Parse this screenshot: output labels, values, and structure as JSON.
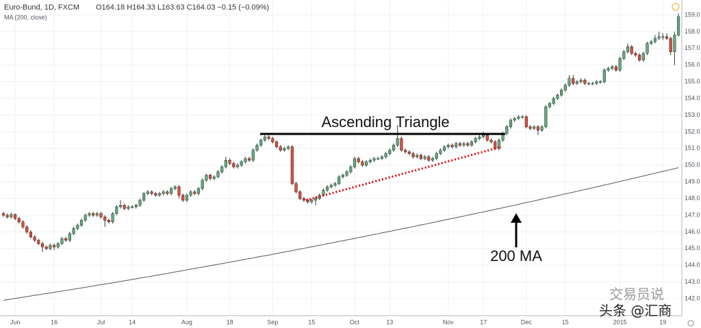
{
  "chart_data": {
    "type": "candlestick",
    "symbol": "Euro-Bund, 1D, FXCM",
    "quote": "O164.18 H164.33 L163.63 C164.03 −0.15 (−0.09%)",
    "indicator": "MA (200, close)",
    "annotations": [
      "Ascending Triangle",
      "200 MA"
    ],
    "watermark": [
      "交易员说",
      "头条 @汇商"
    ],
    "up_color": "#6ba583",
    "down_color": "#d75442",
    "grid": true,
    "ylim": [
      141.06,
      159.9
    ],
    "yticks": [
      {
        "value": 142,
        "label": "142.0"
      },
      {
        "value": 143,
        "label": "143.0"
      },
      {
        "value": 144,
        "label": "144.0"
      },
      {
        "value": 145,
        "label": "145.0"
      },
      {
        "value": 146,
        "label": "146.0"
      },
      {
        "value": 147,
        "label": "147.0"
      },
      {
        "value": 148,
        "label": "148.0"
      },
      {
        "value": 149,
        "label": "149.0"
      },
      {
        "value": 150,
        "label": "150.0"
      },
      {
        "value": 151,
        "label": "151.0"
      },
      {
        "value": 152,
        "label": "152.0"
      },
      {
        "value": 153,
        "label": "153.0"
      },
      {
        "value": 154,
        "label": "154.0"
      },
      {
        "value": 155,
        "label": "155.0"
      },
      {
        "value": 156,
        "label": "156.0"
      },
      {
        "value": 157,
        "label": "157.0"
      },
      {
        "value": 158,
        "label": "158.0"
      },
      {
        "value": 159,
        "label": "159.0"
      }
    ],
    "categories": [
      null,
      null,
      null,
      "Jun",
      null,
      null,
      null,
      null,
      null,
      null,
      null,
      null,
      null,
      "16",
      null,
      null,
      null,
      null,
      null,
      null,
      null,
      null,
      null,
      null,
      null,
      "Jul",
      null,
      null,
      null,
      null,
      null,
      null,
      null,
      "14",
      null,
      null,
      null,
      null,
      null,
      null,
      null,
      null,
      null,
      null,
      null,
      null,
      null,
      "Aug",
      null,
      null,
      null,
      null,
      null,
      null,
      null,
      null,
      null,
      null,
      "18",
      null,
      null,
      null,
      null,
      null,
      null,
      null,
      null,
      null,
      null,
      "Sep",
      null,
      null,
      null,
      null,
      null,
      null,
      null,
      null,
      null,
      "15",
      null,
      null,
      null,
      null,
      null,
      null,
      null,
      null,
      null,
      null,
      "Oct",
      null,
      null,
      null,
      null,
      null,
      null,
      null,
      null,
      "13",
      null,
      null,
      null,
      null,
      null,
      null,
      null,
      null,
      null,
      null,
      null,
      null,
      null,
      null,
      "Nov",
      null,
      null,
      null,
      null,
      null,
      null,
      null,
      null,
      "17",
      null,
      null,
      null,
      null,
      null,
      null,
      null,
      null,
      null,
      null,
      "Dec",
      null,
      null,
      null,
      null,
      null,
      null,
      null,
      null,
      null,
      "15",
      null,
      null,
      null,
      null,
      null,
      null,
      null,
      null,
      null,
      null,
      null,
      null,
      null,
      "2015",
      null,
      null,
      null,
      null,
      null,
      null,
      null,
      null,
      null,
      null,
      "19",
      null,
      null,
      null,
      null
    ],
    "ohlc": [
      [
        147.1,
        147.2,
        146.9,
        147.0
      ],
      [
        147.0,
        147.1,
        146.8,
        146.9
      ],
      [
        146.9,
        147.15,
        146.8,
        147.05
      ],
      [
        147.05,
        147.1,
        146.7,
        146.8
      ],
      [
        146.8,
        146.9,
        146.5,
        146.6
      ],
      [
        146.6,
        146.7,
        146.2,
        146.3
      ],
      [
        146.3,
        146.4,
        145.9,
        146.0
      ],
      [
        146.0,
        146.1,
        145.6,
        145.7
      ],
      [
        145.7,
        145.8,
        145.4,
        145.5
      ],
      [
        145.5,
        145.6,
        145.2,
        145.3
      ],
      [
        145.3,
        145.4,
        144.8,
        145.1
      ],
      [
        145.1,
        145.2,
        144.9,
        145.0
      ],
      [
        145.0,
        145.3,
        144.9,
        145.2
      ],
      [
        145.2,
        145.3,
        144.9,
        145.1
      ],
      [
        145.1,
        145.4,
        145.0,
        145.3
      ],
      [
        145.3,
        145.7,
        145.2,
        145.6
      ],
      [
        145.6,
        145.7,
        145.4,
        145.5
      ],
      [
        145.5,
        146.0,
        145.4,
        145.9
      ],
      [
        145.9,
        146.3,
        145.8,
        146.2
      ],
      [
        146.2,
        146.5,
        146.1,
        146.4
      ],
      [
        146.4,
        146.8,
        146.3,
        146.7
      ],
      [
        146.7,
        147.1,
        146.6,
        147.0
      ],
      [
        147.0,
        147.2,
        146.9,
        147.1
      ],
      [
        147.1,
        147.2,
        146.9,
        147.0
      ],
      [
        147.0,
        147.2,
        146.9,
        147.1
      ],
      [
        147.1,
        147.2,
        146.8,
        146.9
      ],
      [
        146.9,
        147.0,
        146.3,
        146.7
      ],
      [
        146.7,
        146.8,
        146.5,
        146.6
      ],
      [
        146.6,
        147.2,
        146.5,
        147.1
      ],
      [
        147.1,
        147.6,
        147.0,
        147.5
      ],
      [
        147.5,
        147.9,
        147.4,
        147.6
      ],
      [
        147.6,
        147.7,
        147.3,
        147.4
      ],
      [
        147.4,
        147.6,
        147.3,
        147.5
      ],
      [
        147.5,
        147.6,
        147.4,
        147.5
      ],
      [
        147.5,
        147.7,
        147.4,
        147.6
      ],
      [
        147.6,
        148.0,
        147.5,
        147.9
      ],
      [
        147.9,
        148.4,
        147.8,
        148.3
      ],
      [
        148.3,
        148.5,
        148.2,
        148.4
      ],
      [
        148.4,
        148.5,
        148.2,
        148.3
      ],
      [
        148.3,
        148.4,
        148.1,
        148.2
      ],
      [
        148.2,
        148.4,
        148.1,
        148.3
      ],
      [
        148.3,
        148.5,
        148.2,
        148.4
      ],
      [
        148.4,
        148.5,
        148.2,
        148.3
      ],
      [
        148.3,
        148.7,
        148.2,
        148.6
      ],
      [
        148.6,
        148.8,
        148.5,
        148.7
      ],
      [
        148.7,
        148.8,
        148.0,
        148.2
      ],
      [
        148.2,
        148.3,
        147.8,
        147.9
      ],
      [
        147.9,
        148.3,
        147.8,
        148.2
      ],
      [
        148.2,
        148.5,
        148.1,
        148.4
      ],
      [
        148.4,
        148.5,
        148.2,
        148.3
      ],
      [
        148.3,
        148.7,
        148.2,
        148.6
      ],
      [
        148.6,
        149.2,
        148.5,
        149.1
      ],
      [
        149.1,
        149.5,
        149.0,
        149.4
      ],
      [
        149.4,
        149.5,
        149.1,
        149.2
      ],
      [
        149.2,
        149.4,
        149.1,
        149.3
      ],
      [
        149.3,
        149.7,
        149.2,
        149.6
      ],
      [
        149.6,
        150.0,
        149.5,
        149.9
      ],
      [
        149.9,
        150.5,
        149.8,
        150.3
      ],
      [
        150.3,
        150.4,
        150.0,
        150.1
      ],
      [
        150.1,
        150.2,
        149.8,
        149.9
      ],
      [
        149.9,
        150.1,
        149.8,
        150.0
      ],
      [
        150.0,
        150.3,
        149.9,
        150.2
      ],
      [
        150.2,
        150.5,
        150.1,
        150.4
      ],
      [
        150.4,
        150.5,
        150.2,
        150.3
      ],
      [
        150.3,
        151.0,
        150.2,
        150.9
      ],
      [
        150.9,
        151.3,
        150.8,
        151.2
      ],
      [
        151.2,
        151.6,
        151.1,
        151.5
      ],
      [
        151.5,
        151.9,
        151.4,
        151.7
      ],
      [
        151.7,
        151.8,
        151.5,
        151.6
      ],
      [
        151.6,
        151.7,
        151.3,
        151.4
      ],
      [
        151.4,
        151.5,
        151.0,
        151.1
      ],
      [
        151.1,
        151.2,
        150.8,
        150.9
      ],
      [
        150.9,
        151.1,
        150.8,
        151.0
      ],
      [
        151.0,
        151.2,
        150.9,
        151.1
      ],
      [
        151.1,
        151.2,
        148.8,
        148.9
      ],
      [
        148.9,
        149.0,
        148.3,
        148.4
      ],
      [
        148.4,
        148.5,
        147.9,
        148.0
      ],
      [
        148.0,
        148.1,
        147.8,
        147.9
      ],
      [
        147.9,
        148.0,
        147.7,
        147.8
      ],
      [
        147.8,
        148.0,
        147.7,
        147.9
      ],
      [
        147.9,
        148.1,
        147.6,
        148.0
      ],
      [
        148.0,
        148.3,
        147.9,
        148.2
      ],
      [
        148.2,
        148.6,
        148.1,
        148.5
      ],
      [
        148.5,
        148.8,
        148.4,
        148.7
      ],
      [
        148.7,
        148.9,
        148.6,
        148.8
      ],
      [
        148.8,
        149.0,
        148.7,
        148.9
      ],
      [
        148.9,
        149.4,
        148.8,
        149.3
      ],
      [
        149.3,
        149.5,
        149.2,
        149.4
      ],
      [
        149.4,
        149.7,
        149.3,
        149.6
      ],
      [
        149.6,
        150.0,
        149.5,
        149.9
      ],
      [
        149.9,
        150.5,
        149.8,
        150.4
      ],
      [
        150.4,
        150.5,
        150.1,
        150.2
      ],
      [
        150.2,
        150.3,
        149.9,
        150.0
      ],
      [
        150.0,
        150.3,
        149.9,
        150.2
      ],
      [
        150.2,
        150.4,
        150.1,
        150.3
      ],
      [
        150.3,
        150.5,
        150.2,
        150.4
      ],
      [
        150.4,
        150.5,
        150.3,
        150.4
      ],
      [
        150.4,
        150.6,
        150.3,
        150.5
      ],
      [
        150.5,
        150.8,
        150.4,
        150.7
      ],
      [
        150.7,
        151.0,
        150.6,
        150.9
      ],
      [
        150.9,
        151.3,
        150.8,
        151.2
      ],
      [
        151.2,
        152.4,
        151.1,
        151.6
      ],
      [
        151.6,
        151.7,
        150.8,
        150.9
      ],
      [
        150.9,
        151.0,
        150.7,
        150.8
      ],
      [
        150.8,
        150.9,
        150.6,
        150.7
      ],
      [
        150.7,
        150.8,
        150.4,
        150.5
      ],
      [
        150.5,
        150.7,
        150.4,
        150.6
      ],
      [
        150.6,
        150.7,
        150.3,
        150.4
      ],
      [
        150.4,
        150.6,
        150.3,
        150.5
      ],
      [
        150.5,
        150.6,
        150.2,
        150.3
      ],
      [
        150.3,
        150.5,
        150.2,
        150.4
      ],
      [
        150.4,
        150.8,
        150.3,
        150.7
      ],
      [
        150.7,
        151.0,
        150.6,
        150.9
      ],
      [
        150.9,
        151.2,
        150.8,
        151.1
      ],
      [
        151.1,
        151.3,
        151.0,
        151.2
      ],
      [
        151.2,
        151.3,
        151.0,
        151.1
      ],
      [
        151.1,
        151.4,
        151.0,
        151.3
      ],
      [
        151.3,
        151.4,
        151.1,
        151.2
      ],
      [
        151.2,
        151.4,
        151.1,
        151.3
      ],
      [
        151.3,
        151.4,
        151.1,
        151.2
      ],
      [
        151.2,
        151.5,
        151.1,
        151.4
      ],
      [
        151.4,
        151.7,
        151.3,
        151.6
      ],
      [
        151.6,
        151.8,
        151.5,
        151.7
      ],
      [
        151.7,
        152.0,
        151.6,
        151.8
      ],
      [
        151.8,
        151.9,
        151.4,
        151.5
      ],
      [
        151.5,
        151.6,
        151.3,
        151.4
      ],
      [
        151.4,
        151.5,
        150.9,
        151.0
      ],
      [
        151.0,
        151.6,
        150.9,
        151.5
      ],
      [
        151.5,
        152.0,
        151.4,
        151.9
      ],
      [
        151.9,
        152.4,
        151.8,
        152.3
      ],
      [
        152.3,
        152.8,
        152.2,
        152.7
      ],
      [
        152.7,
        152.9,
        152.6,
        152.8
      ],
      [
        152.8,
        153.0,
        152.7,
        152.9
      ],
      [
        152.9,
        153.0,
        152.8,
        152.9
      ],
      [
        152.9,
        153.0,
        152.2,
        152.3
      ],
      [
        152.3,
        152.4,
        152.1,
        152.2
      ],
      [
        152.2,
        152.4,
        152.1,
        152.3
      ],
      [
        152.3,
        152.4,
        151.8,
        152.1
      ],
      [
        152.1,
        152.4,
        152.0,
        152.3
      ],
      [
        152.3,
        153.6,
        152.2,
        153.5
      ],
      [
        153.5,
        153.8,
        153.4,
        153.7
      ],
      [
        153.7,
        154.1,
        153.6,
        154.0
      ],
      [
        154.0,
        154.3,
        153.9,
        154.2
      ],
      [
        154.2,
        154.6,
        154.1,
        154.5
      ],
      [
        154.5,
        154.9,
        154.4,
        154.8
      ],
      [
        154.8,
        155.4,
        154.7,
        155.2
      ],
      [
        155.2,
        155.4,
        154.8,
        154.9
      ],
      [
        154.9,
        155.1,
        154.8,
        155.0
      ],
      [
        155.0,
        155.2,
        154.9,
        155.1
      ],
      [
        155.1,
        155.2,
        154.8,
        154.9
      ],
      [
        154.9,
        155.0,
        154.8,
        154.9
      ],
      [
        154.9,
        155.0,
        154.8,
        154.9
      ],
      [
        154.9,
        155.1,
        154.8,
        155.0
      ],
      [
        155.0,
        155.1,
        154.9,
        155.0
      ],
      [
        155.0,
        155.8,
        154.9,
        155.7
      ],
      [
        155.7,
        155.9,
        155.6,
        155.8
      ],
      [
        155.8,
        156.0,
        155.7,
        155.9
      ],
      [
        155.9,
        156.0,
        155.6,
        155.7
      ],
      [
        155.7,
        156.5,
        155.6,
        156.4
      ],
      [
        156.4,
        156.9,
        156.3,
        156.8
      ],
      [
        156.8,
        157.3,
        156.7,
        157.1
      ],
      [
        157.1,
        157.2,
        156.6,
        156.7
      ],
      [
        156.7,
        156.8,
        156.5,
        156.6
      ],
      [
        156.6,
        156.7,
        156.2,
        156.3
      ],
      [
        156.3,
        156.8,
        156.2,
        156.7
      ],
      [
        156.7,
        157.4,
        156.6,
        157.3
      ],
      [
        157.3,
        157.5,
        157.2,
        157.4
      ],
      [
        157.4,
        157.8,
        157.3,
        157.6
      ],
      [
        157.6,
        158.0,
        157.5,
        157.7
      ],
      [
        157.7,
        157.9,
        157.5,
        157.7
      ],
      [
        157.7,
        157.9,
        157.5,
        157.6
      ],
      [
        157.6,
        157.7,
        156.6,
        156.8
      ],
      [
        156.8,
        158.0,
        156.0,
        157.8
      ],
      [
        157.8,
        159.1,
        157.7,
        158.9
      ]
    ],
    "ma": {
      "color": "#555555",
      "values": [
        141.9,
        141.94,
        141.97,
        142.01,
        142.05,
        142.09,
        142.12,
        142.16,
        142.2,
        142.23,
        142.27,
        142.31,
        142.34,
        142.38,
        142.42,
        142.46,
        142.49,
        142.53,
        142.57,
        142.6,
        142.64,
        142.68,
        142.72,
        142.76,
        142.8,
        142.84,
        142.87,
        142.91,
        142.95,
        142.99,
        143.03,
        143.07,
        143.11,
        143.15,
        143.19,
        143.23,
        143.27,
        143.31,
        143.35,
        143.39,
        143.43,
        143.47,
        143.51,
        143.56,
        143.6,
        143.64,
        143.68,
        143.72,
        143.77,
        143.81,
        143.85,
        143.89,
        143.93,
        143.98,
        144.02,
        144.06,
        144.1,
        144.14,
        144.19,
        144.23,
        144.27,
        144.31,
        144.36,
        144.4,
        144.44,
        144.49,
        144.53,
        144.57,
        144.61,
        144.66,
        144.7,
        144.75,
        144.79,
        144.84,
        144.88,
        144.93,
        144.97,
        145.02,
        145.06,
        145.11,
        145.15,
        145.2,
        145.24,
        145.29,
        145.33,
        145.38,
        145.43,
        145.47,
        145.52,
        145.56,
        145.61,
        145.66,
        145.7,
        145.75,
        145.8,
        145.85,
        145.89,
        145.94,
        145.99,
        146.03,
        146.08,
        146.13,
        146.18,
        146.22,
        146.27,
        146.32,
        146.37,
        146.42,
        146.46,
        146.51,
        146.56,
        146.61,
        146.66,
        146.71,
        146.76,
        146.81,
        146.85,
        146.9,
        146.95,
        147.0,
        147.05,
        147.1,
        147.15,
        147.2,
        147.25,
        147.3,
        147.35,
        147.4,
        147.45,
        147.5,
        147.55,
        147.6,
        147.65,
        147.71,
        147.76,
        147.81,
        147.86,
        147.91,
        147.97,
        148.02,
        148.07,
        148.12,
        148.17,
        148.23,
        148.28,
        148.33,
        148.38,
        148.43,
        148.49,
        148.54,
        148.59,
        148.64,
        148.7,
        148.75,
        148.81,
        148.86,
        148.91,
        148.97,
        149.02,
        149.08,
        149.13,
        149.19,
        149.24,
        149.3,
        149.35,
        149.41,
        149.46,
        149.52,
        149.57,
        149.63,
        149.68,
        149.74,
        149.79,
        149.85
      ]
    }
  }
}
